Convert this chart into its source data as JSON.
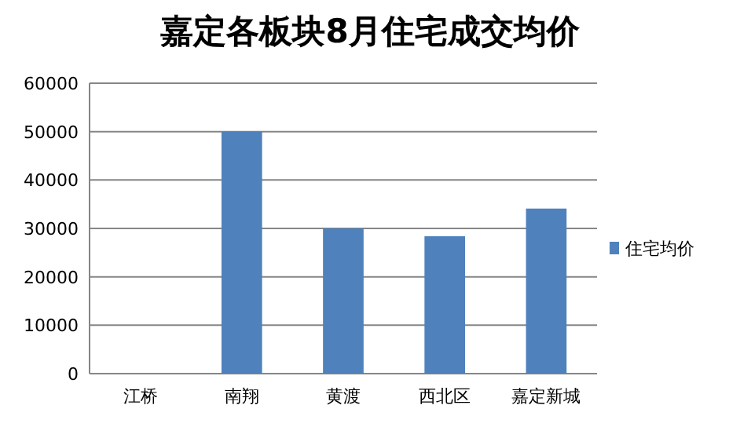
{
  "chart_data": {
    "type": "bar",
    "title": "嘉定各板块8月住宅成交均价",
    "categories": [
      "江桥",
      "南翔",
      "黄渡",
      "西北区",
      "嘉定新城"
    ],
    "series": [
      {
        "name": "住宅均价",
        "color": "#4f81bd",
        "values": [
          0,
          50000,
          30000,
          28400,
          34100
        ]
      }
    ],
    "ylim": [
      0,
      60000
    ],
    "yticks": [
      0,
      10000,
      20000,
      30000,
      40000,
      50000,
      60000
    ],
    "grid": "y",
    "legend": "right"
  }
}
